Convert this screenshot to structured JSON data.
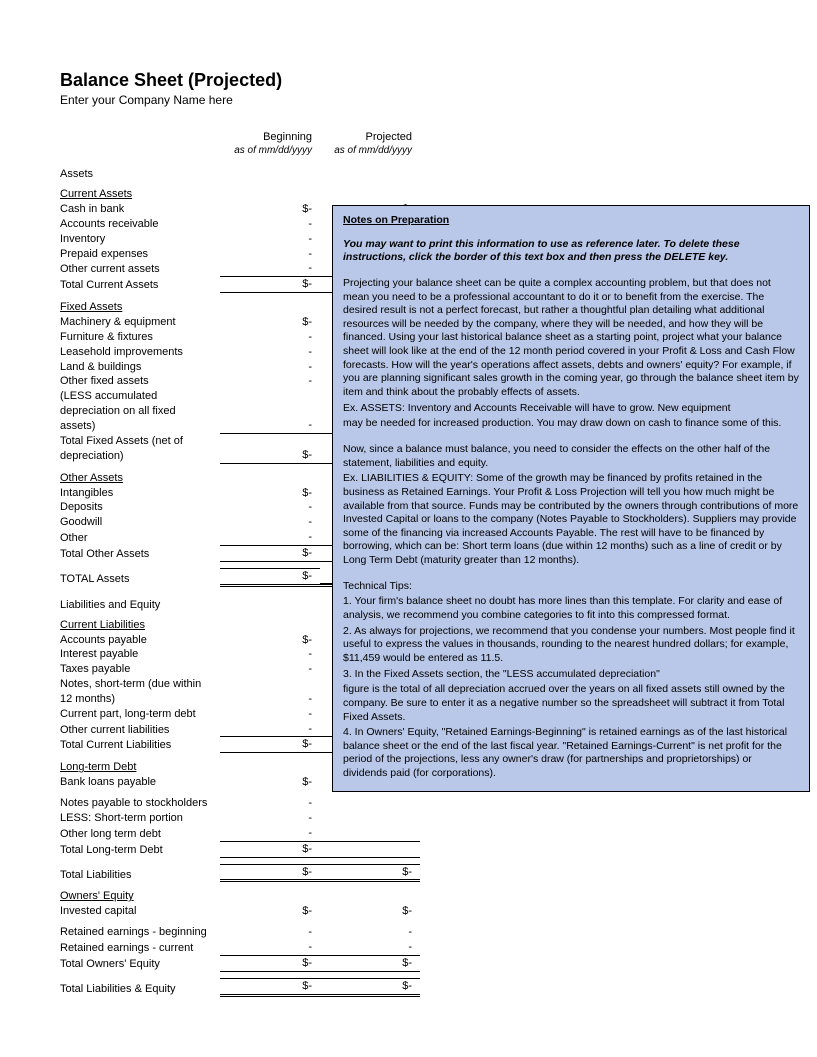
{
  "title": "Balance Sheet (Projected)",
  "subtitle": "Enter your Company Name here",
  "columns": {
    "beginning": {
      "label": "Beginning",
      "sub": "as of mm/dd/yyyy"
    },
    "projected": {
      "label": "Projected",
      "sub": "as of mm/dd/yyyy"
    }
  },
  "assets_label": "Assets",
  "dash": "-",
  "dollar_dash": "$-",
  "current_assets": {
    "header": "Current Assets",
    "rows": [
      {
        "label": "Cash in bank",
        "v1": "$-",
        "v2": "$-"
      },
      {
        "label": "Accounts receivable",
        "v1": "-",
        "v2": ""
      },
      {
        "label": "Inventory",
        "v1": "-",
        "v2": ""
      },
      {
        "label": "Prepaid expenses",
        "v1": "-",
        "v2": ""
      },
      {
        "label": "Other current assets",
        "v1": "-",
        "v2": ""
      }
    ],
    "total": {
      "label": "Total Current Assets",
      "v1": "$-",
      "v2": ""
    }
  },
  "fixed_assets": {
    "header": "Fixed Assets",
    "rows": [
      {
        "label": "Machinery & equipment",
        "v1": "$-",
        "v2": ""
      },
      {
        "label": "Furniture & fixtures",
        "v1": "-",
        "v2": ""
      },
      {
        "label": "Leasehold improvements",
        "v1": "-",
        "v2": ""
      },
      {
        "label": "Land & buildings",
        "v1": "-",
        "v2": ""
      },
      {
        "label": "Other fixed assets",
        "v1": "-",
        "v2": ""
      },
      {
        "label": "(LESS accumulated depreciation on all fixed assets)",
        "v1": "-",
        "v2": ""
      }
    ],
    "total": {
      "label": "Total Fixed Assets (net of depreciation)",
      "v1": "$-",
      "v2": ""
    }
  },
  "other_assets": {
    "header": "Other Assets",
    "rows": [
      {
        "label": "Intangibles",
        "v1": "$-",
        "v2": ""
      },
      {
        "label": "Deposits",
        "v1": "-",
        "v2": ""
      },
      {
        "label": "Goodwill",
        "v1": "-",
        "v2": ""
      },
      {
        "label": "Other",
        "v1": "-",
        "v2": ""
      }
    ],
    "total": {
      "label": "Total Other Assets",
      "v1": "$-",
      "v2": ""
    }
  },
  "total_assets": {
    "label": "TOTAL Assets",
    "v1": "$-",
    "v2": ""
  },
  "liab_equity_label": "Liabilities and Equity",
  "current_liab": {
    "header": "Current Liabilities",
    "rows": [
      {
        "label": "Accounts payable",
        "v1": "$-",
        "v2": ""
      },
      {
        "label": "Interest payable",
        "v1": "-",
        "v2": ""
      },
      {
        "label": "Taxes payable",
        "v1": "-",
        "v2": ""
      },
      {
        "label": "Notes, short-term (due within 12 months)",
        "v1": "-",
        "v2": ""
      },
      {
        "label": "Current part, long-term debt",
        "v1": "-",
        "v2": ""
      },
      {
        "label": "Other current liabilities",
        "v1": "-",
        "v2": ""
      }
    ],
    "total": {
      "label": "Total Current Liabilities",
      "v1": "$-",
      "v2": ""
    }
  },
  "longterm_debt": {
    "header": "Long-term Debt",
    "rows": [
      {
        "label": "Bank loans payable",
        "v1": "$-",
        "v2": ""
      },
      {
        "label": "Notes payable to stockholders",
        "v1": "-",
        "v2": ""
      },
      {
        "label": "LESS: Short-term portion",
        "v1": "-",
        "v2": ""
      },
      {
        "label": "Other long term debt",
        "v1": "-",
        "v2": ""
      }
    ],
    "total": {
      "label": "Total Long-term Debt",
      "v1": "$-",
      "v2": ""
    }
  },
  "total_liab": {
    "label": "Total Liabilities",
    "v1": "$-",
    "v2": "$-"
  },
  "owners_equity": {
    "header": "Owners' Equity",
    "rows": [
      {
        "label": "Invested capital",
        "v1": "$-",
        "v2": "$-"
      },
      {
        "label": "Retained earnings - beginning",
        "v1": "-",
        "v2": "-"
      },
      {
        "label": "Retained earnings - current",
        "v1": "-",
        "v2": "-"
      }
    ],
    "total": {
      "label": "Total Owners' Equity",
      "v1": "$-",
      "v2": "$-"
    }
  },
  "total_liab_equity": {
    "label": "Total Liabilities & Equity",
    "v1": "$-",
    "v2": "$-"
  },
  "notes": {
    "title": "Notes on Preparation",
    "lead": "You may want to print this information to use as reference later. To delete these instructions, click the border of this text box and then press the DELETE key.",
    "para1": "Projecting your balance sheet can be quite a complex accounting problem, but that does not mean you need to be a professional accountant to do it or to benefit from the exercise. The desired result is not a perfect forecast, but rather a thoughtful plan detailing what additional resources will be needed by the company, where they will be needed, and how they will be financed. Using your last historical balance sheet as a starting point, project what your balance sheet will look like at the end of the 12 month period covered in your Profit & Loss and Cash Flow forecasts. How will the year's operations affect assets, debts and owners' equity? For example, if you are planning significant sales growth in the coming year, go through the balance sheet item by item and think about the probably effects of assets.",
    "para1b": "Ex. ASSETS: Inventory and Accounts Receivable will have to grow. New equipment",
    "para1c": "may be needed for increased production. You may draw down on cash to finance some of this.",
    "para2": "Now, since a balance must balance, you need to consider the effects on the other half of the statement, liabilities and equity.",
    "para2b": "Ex. LIABILITIES & EQUITY: Some of the growth may be financed by profits retained in the business as Retained Earnings. Your Profit & Loss Projection will tell you how much might be available from that source. Funds may be contributed by the owners through contributions of more Invested Capital or loans to the company (Notes Payable to Stockholders). Suppliers may provide some of the financing via increased Accounts Payable. The rest will have to be financed by borrowing, which can be: Short term loans (due within 12 months) such as a line of credit or by Long Term Debt (maturity greater than 12 months).",
    "tips_title": "Technical Tips:",
    "tip1": "1. Your firm's balance sheet no doubt has more lines than this template. For clarity and ease of analysis, we recommend you combine categories to fit into this compressed format.",
    "tip2": "2. As always for projections, we recommend that you condense your numbers. Most people find it useful to express the values in thousands, rounding to the nearest hundred dollars; for example, $11,459 would be entered as 11.5.",
    "tip3a": "3. In the Fixed Assets section, the \"LESS accumulated depreciation\"",
    "tip3b": "figure is the total of all depreciation accrued over the years on all fixed assets still owned by the company. Be sure to enter it as a negative number so the spreadsheet will subtract it from Total Fixed Assets.",
    "tip4": "4. In Owners' Equity, \"Retained Earnings-Beginning\" is retained earnings as of the last historical balance sheet or the end of the last fiscal year. \"Retained Earnings-Current\" is net profit for the period of the projections, less any owner's draw (for partnerships and proprietorships) or dividends paid (for corporations)."
  },
  "styling": {
    "notes_bg": "#b9c7e8",
    "notes_border": "#000000",
    "page_bg": "#ffffff",
    "text_color": "#000000",
    "title_fontsize": 18,
    "body_fontsize": 11,
    "notes_fontsize": 10.5
  }
}
